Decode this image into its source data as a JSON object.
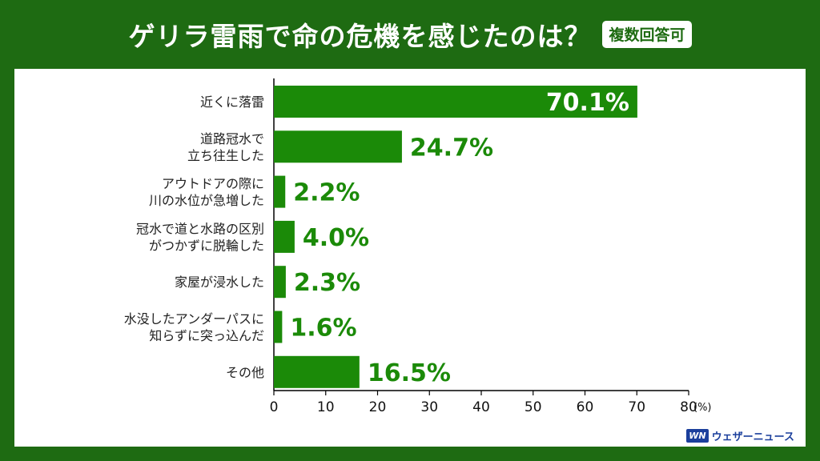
{
  "header": {
    "title": "ゲリラ雷雨で命の危機を感じたのは？",
    "badge": "複数回答可"
  },
  "brand": {
    "logo_mark": "WN",
    "logo_text": "ウェザーニュース"
  },
  "colors": {
    "background": "#1e6b12",
    "bar": "#1b8a08",
    "value_label": "#1b8a08",
    "inside_label": "#ffffff"
  },
  "chart_data": {
    "type": "bar",
    "orientation": "horizontal",
    "title": "ゲリラ雷雨で命の危機を感じたのは？",
    "unit_label": "(%)",
    "xlim": [
      0,
      80
    ],
    "xticks": [
      0,
      10,
      20,
      30,
      40,
      50,
      60,
      70,
      80
    ],
    "categories": [
      [
        "近くに落雷"
      ],
      [
        "道路冠水で",
        "立ち往生した"
      ],
      [
        "アウトドアの際に",
        "川の水位が急増した"
      ],
      [
        "冠水で道と水路の区別",
        "がつかずに脱輪した"
      ],
      [
        "家屋が浸水した"
      ],
      [
        "水没したアンダーパスに",
        "知らずに突っ込んだ"
      ],
      [
        "その他"
      ]
    ],
    "values": [
      70.1,
      24.7,
      2.2,
      4.0,
      2.3,
      1.6,
      16.5
    ],
    "value_labels": [
      "70.1%",
      "24.7%",
      "2.2%",
      "4.0%",
      "2.3%",
      "1.6%",
      "16.5%"
    ],
    "grid": false
  }
}
